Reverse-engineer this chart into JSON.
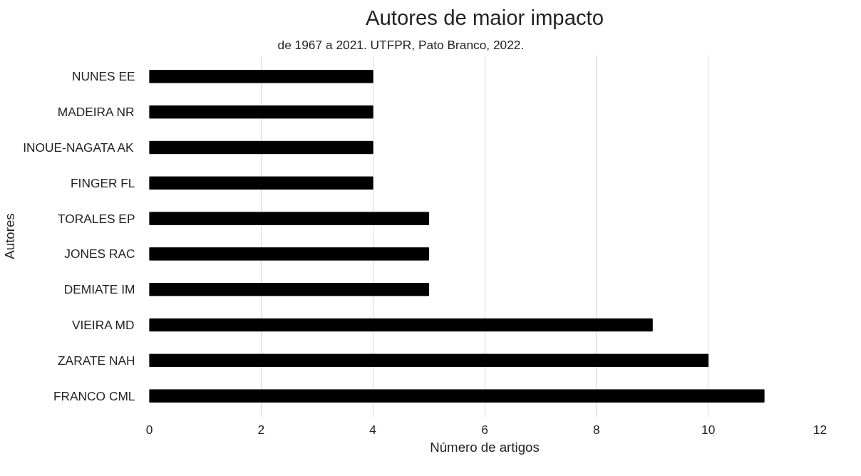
{
  "chart_data": {
    "type": "bar",
    "orientation": "horizontal",
    "title": "Autores de maior impacto",
    "xlabel": "Número de artigos",
    "ylabel": "Autores",
    "categories": [
      "NUNES EE",
      "MADEIRA NR",
      "INOUE-NAGATA AK",
      "FINGER FL",
      "TORALES EP",
      "JONES RAC",
      "DEMIATE IM",
      "VIEIRA MD",
      "ZARATE NAH",
      "FRANCO CML"
    ],
    "values": [
      4,
      4,
      4,
      4,
      5,
      5,
      5,
      9,
      10,
      11
    ],
    "color": "#000000",
    "xlim": [
      0,
      12
    ],
    "xticks": [
      0,
      2,
      4,
      6,
      8,
      10,
      12
    ],
    "grid": "x",
    "annotations": [
      "de 1967 a 2021. UTFPR, Pato Branco, 2022."
    ]
  }
}
